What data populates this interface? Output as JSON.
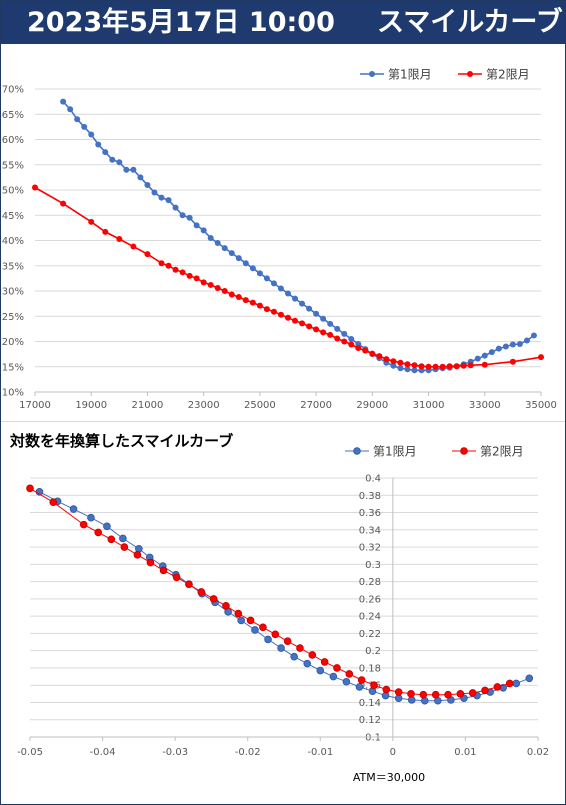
{
  "header": {
    "date": "2023年5月17日 10:00",
    "title": "スマイルカーブ"
  },
  "colors": {
    "series1": "#4472c4",
    "series2": "#ff0000",
    "header_bg": "#1f3a6e"
  },
  "chart_data": [
    {
      "type": "line",
      "title": "",
      "xlabel": "",
      "ylabel": "",
      "xlim": [
        17000,
        35000
      ],
      "ylim": [
        0.1,
        0.7
      ],
      "xticks": [
        17000,
        19000,
        21000,
        23000,
        25000,
        27000,
        29000,
        31000,
        33000,
        35000
      ],
      "yticks": [
        0.1,
        0.15,
        0.2,
        0.25,
        0.3,
        0.35,
        0.4,
        0.45,
        0.5,
        0.55,
        0.6,
        0.65,
        0.7
      ],
      "ytick_labels": [
        "10%",
        "15%",
        "20%",
        "25%",
        "30%",
        "35%",
        "40%",
        "45%",
        "50%",
        "55%",
        "60%",
        "65%",
        "70%"
      ],
      "grid": "horizontal",
      "legend": "top-right",
      "series": [
        {
          "name": "第1限月",
          "color": "#4472c4",
          "x": [
            18000,
            18250,
            18500,
            18750,
            19000,
            19250,
            19500,
            19750,
            20000,
            20250,
            20500,
            20750,
            21000,
            21250,
            21500,
            21750,
            22000,
            22250,
            22500,
            22750,
            23000,
            23250,
            23500,
            23750,
            24000,
            24250,
            24500,
            24750,
            25000,
            25250,
            25500,
            25750,
            26000,
            26250,
            26500,
            26750,
            27000,
            27250,
            27500,
            27750,
            28000,
            28250,
            28500,
            28750,
            29000,
            29250,
            29500,
            29750,
            30000,
            30250,
            30500,
            30750,
            31000,
            31250,
            31500,
            31750,
            32000,
            32250,
            32500,
            32750,
            33000,
            33250,
            33500,
            33750,
            34000,
            34250,
            34500,
            34750
          ],
          "y": [
            0.675,
            0.66,
            0.64,
            0.625,
            0.61,
            0.59,
            0.575,
            0.56,
            0.555,
            0.54,
            0.54,
            0.525,
            0.51,
            0.495,
            0.485,
            0.48,
            0.465,
            0.45,
            0.445,
            0.43,
            0.42,
            0.405,
            0.395,
            0.385,
            0.375,
            0.365,
            0.355,
            0.345,
            0.335,
            0.325,
            0.315,
            0.305,
            0.295,
            0.285,
            0.275,
            0.265,
            0.255,
            0.245,
            0.235,
            0.225,
            0.215,
            0.205,
            0.195,
            0.185,
            0.175,
            0.167,
            0.158,
            0.152,
            0.147,
            0.145,
            0.143,
            0.143,
            0.143,
            0.145,
            0.147,
            0.148,
            0.151,
            0.155,
            0.16,
            0.166,
            0.172,
            0.179,
            0.186,
            0.19,
            0.194,
            0.195,
            0.202,
            0.212
          ]
        },
        {
          "name": "第2限月",
          "color": "#ff0000",
          "x": [
            17000,
            18000,
            19000,
            19500,
            20000,
            20500,
            21000,
            21500,
            21750,
            22000,
            22250,
            22500,
            22750,
            23000,
            23250,
            23500,
            23750,
            24000,
            24250,
            24500,
            24750,
            25000,
            25250,
            25500,
            25750,
            26000,
            26250,
            26500,
            26750,
            27000,
            27250,
            27500,
            27750,
            28000,
            28250,
            28500,
            28750,
            29000,
            29250,
            29500,
            29750,
            30000,
            30250,
            30500,
            30750,
            31000,
            31250,
            31500,
            31750,
            32000,
            32250,
            32500,
            33000,
            34000,
            35000
          ],
          "y": [
            0.505,
            0.473,
            0.437,
            0.417,
            0.403,
            0.388,
            0.373,
            0.355,
            0.35,
            0.342,
            0.337,
            0.33,
            0.325,
            0.317,
            0.312,
            0.306,
            0.3,
            0.293,
            0.288,
            0.282,
            0.277,
            0.271,
            0.264,
            0.259,
            0.253,
            0.247,
            0.241,
            0.236,
            0.23,
            0.224,
            0.218,
            0.213,
            0.206,
            0.2,
            0.194,
            0.187,
            0.182,
            0.176,
            0.171,
            0.165,
            0.161,
            0.158,
            0.155,
            0.153,
            0.151,
            0.15,
            0.15,
            0.15,
            0.151,
            0.151,
            0.152,
            0.153,
            0.154,
            0.16,
            0.169
          ]
        }
      ]
    },
    {
      "type": "line",
      "title": "対数を年換算したスマイルカーブ",
      "xlabel": "",
      "ylabel": "",
      "xlim": [
        -0.05,
        0.02
      ],
      "ylim": [
        0.1,
        0.4
      ],
      "xticks": [
        -0.05,
        -0.04,
        -0.03,
        -0.02,
        -0.01,
        0,
        0.01,
        0.02
      ],
      "xtick_labels": [
        "-0.05",
        "-0.04",
        "-0.03",
        "-0.02",
        "-0.01",
        "0",
        "0.01",
        "0.02"
      ],
      "yticks": [
        0.1,
        0.12,
        0.14,
        0.16,
        0.18,
        0.2,
        0.22,
        0.24,
        0.26,
        0.28,
        0.3,
        0.32,
        0.34,
        0.36,
        0.38,
        0.4
      ],
      "ytick_labels": [
        "0.1",
        "0.12",
        "0.14",
        "0.16",
        "0.18",
        "0.2",
        "0.22",
        "0.24",
        "0.26",
        "0.28",
        "0.3",
        "0.32",
        "0.34",
        "0.36",
        "0.38",
        "0.4"
      ],
      "grid": "horizontal",
      "legend": "top-right",
      "annotation": "ATM＝30,000",
      "series": [
        {
          "name": "第1限月",
          "color": "#4472c4",
          "x": [
            -0.0487,
            -0.0462,
            -0.044,
            -0.0416,
            -0.0394,
            -0.0372,
            -0.035,
            -0.0335,
            -0.0317,
            -0.0299,
            -0.0281,
            -0.0263,
            -0.0245,
            -0.0227,
            -0.0209,
            -0.019,
            -0.0172,
            -0.0154,
            -0.0136,
            -0.0118,
            -0.01,
            -0.0082,
            -0.0064,
            -0.0046,
            -0.0028,
            -0.001,
            0.0008,
            0.0026,
            0.0044,
            0.0062,
            0.008,
            0.0098,
            0.0116,
            0.0134,
            0.0152,
            0.017,
            0.0188
          ],
          "y": [
            0.384,
            0.373,
            0.364,
            0.354,
            0.344,
            0.33,
            0.318,
            0.308,
            0.298,
            0.288,
            0.277,
            0.266,
            0.256,
            0.245,
            0.235,
            0.224,
            0.213,
            0.203,
            0.193,
            0.185,
            0.177,
            0.17,
            0.164,
            0.158,
            0.153,
            0.148,
            0.145,
            0.143,
            0.142,
            0.142,
            0.143,
            0.145,
            0.148,
            0.152,
            0.157,
            0.162,
            0.168
          ]
        },
        {
          "name": "第2限月",
          "color": "#ff0000",
          "x": [
            -0.05,
            -0.0468,
            -0.0426,
            -0.0406,
            -0.0388,
            -0.037,
            -0.0352,
            -0.0334,
            -0.0316,
            -0.0298,
            -0.0281,
            -0.0264,
            -0.0247,
            -0.023,
            -0.0213,
            -0.0196,
            -0.0179,
            -0.0162,
            -0.0145,
            -0.0128,
            -0.0111,
            -0.0094,
            -0.0077,
            -0.006,
            -0.0043,
            -0.0026,
            -0.0009,
            0.0008,
            0.0025,
            0.0042,
            0.0059,
            0.0076,
            0.0093,
            0.011,
            0.0127,
            0.0144,
            0.0161
          ],
          "y": [
            0.388,
            0.372,
            0.346,
            0.337,
            0.329,
            0.32,
            0.311,
            0.302,
            0.293,
            0.285,
            0.277,
            0.268,
            0.26,
            0.252,
            0.243,
            0.235,
            0.227,
            0.219,
            0.211,
            0.203,
            0.195,
            0.187,
            0.18,
            0.173,
            0.166,
            0.16,
            0.155,
            0.152,
            0.15,
            0.149,
            0.149,
            0.149,
            0.15,
            0.151,
            0.154,
            0.158,
            0.162
          ]
        }
      ]
    }
  ]
}
